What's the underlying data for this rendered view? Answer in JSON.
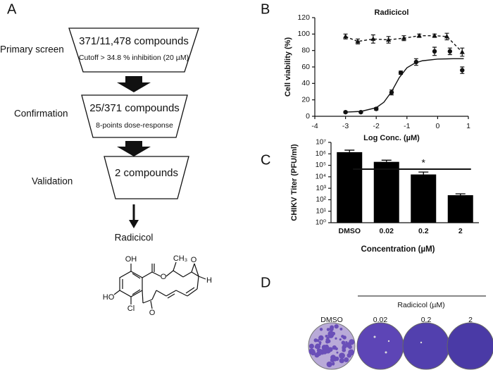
{
  "panel_labels": [
    "A",
    "B",
    "C",
    "D"
  ],
  "flowchart": {
    "steps": [
      {
        "stage": "Primary screen",
        "title": "371/11,478 compounds",
        "detail": "Cutoff > 34.8 % inhibition (20 µM)"
      },
      {
        "stage": "Confirmation",
        "title": "25/371 compounds",
        "detail": "8-points dose-response"
      },
      {
        "stage": "Validation",
        "title": "2 compounds"
      }
    ],
    "result": "Radicicol",
    "structure_atoms": [
      "OH",
      "O",
      "CH₃",
      "O",
      "H",
      "HO",
      "Cl",
      "O"
    ]
  },
  "chart_data": [
    {
      "type": "scatter",
      "title": "Radicicol",
      "xlabel": "Log Conc. (µM)",
      "ylabel": "Cell viability (%)",
      "xlim": [
        -4,
        1
      ],
      "xticks": [
        -4,
        -3,
        -2,
        -1,
        0,
        1
      ],
      "ylim": [
        0,
        120
      ],
      "yticks": [
        0,
        20,
        40,
        60,
        80,
        100,
        120
      ],
      "series": [
        {
          "marker": "triangle",
          "line": "dashed",
          "color": "#111111",
          "x": [
            -3,
            -2.6,
            -2.1,
            -1.6,
            -1.1,
            -0.6,
            -0.1,
            0.3,
            0.8
          ],
          "values": [
            97,
            91,
            94,
            93,
            95,
            98,
            98,
            97,
            78
          ],
          "errors": [
            3,
            3,
            5,
            4,
            3,
            2,
            2,
            4,
            5
          ]
        },
        {
          "marker": "circle",
          "line": "none",
          "color": "#111111",
          "x": [
            -3,
            -2.5,
            -2,
            -1.5,
            -1.2,
            -0.7,
            -0.1,
            0.4,
            0.8
          ],
          "values": [
            5,
            5,
            9,
            29,
            53,
            66,
            79,
            79,
            56
          ],
          "errors": [
            1,
            1,
            1.5,
            3,
            2,
            4,
            5,
            4,
            4
          ]
        },
        {
          "marker": "none",
          "line": "solid",
          "color": "#111111",
          "x": [
            -3,
            -2.5,
            -2,
            -1.75,
            -1.5,
            -1.25,
            -1,
            -0.75,
            -0.5,
            0,
            0.5,
            0.85
          ],
          "values": [
            5.1,
            5.9,
            10.4,
            17.1,
            30,
            47,
            59,
            64.5,
            67.5,
            69.6,
            70,
            70
          ]
        }
      ]
    },
    {
      "type": "bar",
      "xlabel": "Concentration (µM)",
      "ylabel": "CHIKV Titer (PFU/ml)",
      "categories": [
        "DMSO",
        "0.02",
        "0.2",
        "2"
      ],
      "values": [
        1400000,
        200000,
        16000,
        250
      ],
      "errors": [
        700000,
        80000,
        10000,
        80
      ],
      "color": "#000000",
      "log_scale": true,
      "ylim": [
        1,
        10000000
      ],
      "yticks": [
        {
          "value": 1,
          "label": "10⁰"
        },
        {
          "value": 10,
          "label": "10¹"
        },
        {
          "value": 100,
          "label": "10²"
        },
        {
          "value": 1000,
          "label": "10³"
        },
        {
          "value": 10000,
          "label": "10⁴"
        },
        {
          "value": 100000,
          "label": "10⁵"
        },
        {
          "value": 1000000,
          "label": "10⁶"
        },
        {
          "value": 10000000,
          "label": "10⁷"
        }
      ],
      "annotation": "*"
    }
  ],
  "plates": {
    "group_label": "Radicicol (µM)",
    "labels": [
      "DMSO",
      "0.02",
      "0.2",
      "2"
    ]
  }
}
